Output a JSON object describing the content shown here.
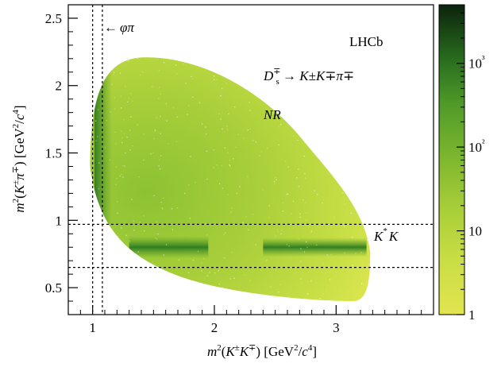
{
  "chart_data": {
    "type": "heatmap",
    "title": "",
    "xlabel": "m²(K±K∓) [GeV²/c⁴]",
    "ylabel": "m²(K±π∓) [GeV²/c⁴]",
    "xlim": [
      0.8,
      3.8
    ],
    "ylim": [
      0.3,
      2.6
    ],
    "xticks": [
      1,
      2,
      3
    ],
    "xtick_labels": [
      "1",
      "2",
      "3"
    ],
    "yticks": [
      0.5,
      1,
      1.5,
      2,
      2.5
    ],
    "ytick_labels": [
      "0.5",
      "1",
      "1.5",
      "2",
      "2.5"
    ],
    "colorbar": {
      "scale": "log",
      "range": [
        1,
        5000
      ],
      "ticks": [
        1,
        10,
        100,
        1000
      ],
      "tick_labels": [
        "1",
        "10",
        "10²",
        "10³"
      ],
      "color_low": "#dfe34d",
      "color_mid": "#87bd2f",
      "color_high": "#0a2a0a"
    },
    "dalitz_region": {
      "x_min": 0.98,
      "x_max": 3.28,
      "y_min": 0.4,
      "y_max": 2.21
    },
    "resonance_bands": [
      {
        "label": "φπ",
        "axis": "x",
        "center": 1.04,
        "orientation": "vertical"
      },
      {
        "label": "K*K",
        "axis": "y",
        "center": 0.8,
        "orientation": "horizontal"
      }
    ],
    "selection_lines": {
      "vertical_x": [
        1.0,
        1.08
      ],
      "horizontal_y": [
        0.65,
        0.97
      ]
    },
    "annotations": {
      "experiment": "LHCb",
      "decay_prefix": "D",
      "decay_sub": "s",
      "decay_sup": "∓",
      "decay_rest": " → K±K∓π∓",
      "region_nr": "NR",
      "region_kstar_k": "K",
      "region_kstar_star": "*",
      "region_kstar_suffix": "K",
      "phi_pi_arrow": "←",
      "phi_pi_label": "φπ"
    }
  }
}
